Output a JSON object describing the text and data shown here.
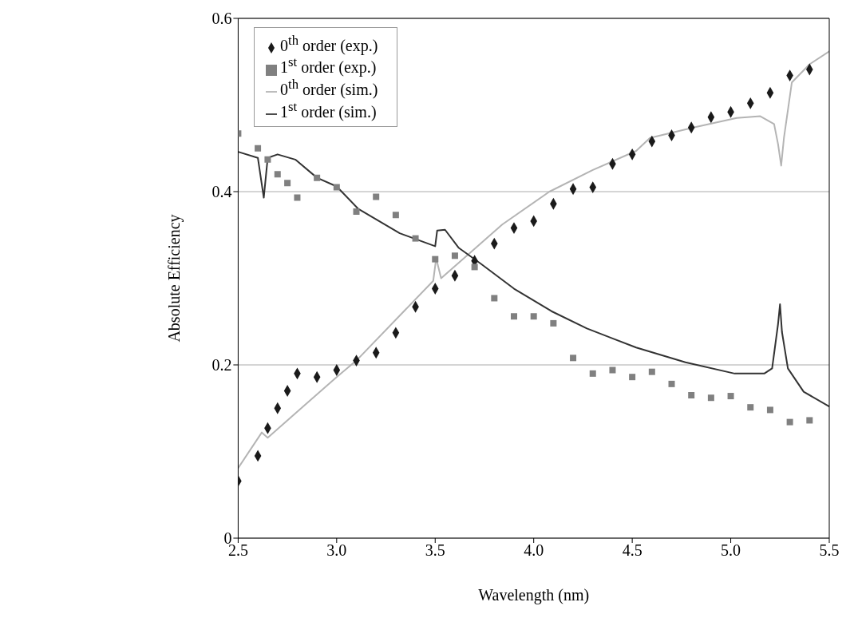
{
  "chart_data": {
    "type": "scatter",
    "xlabel": "Wavelength (nm)",
    "ylabel": "Absolute Efficiency",
    "xlim": [
      2.5,
      5.5
    ],
    "xticks": [
      2.5,
      {
        "value": 3,
        "label": "3.0"
      },
      3.5,
      {
        "value": 4,
        "label": "4.0"
      },
      4.5,
      {
        "value": 5,
        "label": "5.0"
      },
      5.5
    ],
    "ylim": [
      0,
      0.6
    ],
    "yticks": [
      0,
      0.2,
      0.4,
      0.6
    ],
    "grid": "y",
    "legend": "top",
    "series": [
      {
        "name": "0$^{th}$ order (exp.)",
        "marker": "diamond",
        "color": "#1a1a1a",
        "x": [
          2.5,
          2.6,
          2.65,
          2.7,
          2.75,
          2.8,
          2.9,
          3.0,
          3.1,
          3.2,
          3.3,
          3.4,
          3.5,
          3.6,
          3.7,
          3.8,
          3.9,
          4.0,
          4.1,
          4.2,
          4.3,
          4.4,
          4.5,
          4.6,
          4.7,
          4.8,
          4.9,
          5.0,
          5.1,
          5.2,
          5.3,
          5.4
        ],
        "values": [
          0.066,
          0.095,
          0.127,
          0.15,
          0.17,
          0.19,
          0.186,
          0.194,
          0.205,
          0.214,
          0.237,
          0.267,
          0.288,
          0.303,
          0.32,
          0.34,
          0.358,
          0.366,
          0.386,
          0.403,
          0.405,
          0.432,
          0.443,
          0.458,
          0.465,
          0.474,
          0.486,
          0.492,
          0.502,
          0.514,
          0.534,
          0.541
        ]
      },
      {
        "name": "1$^{st}$ order (exp.)",
        "marker": "square",
        "color": "#808080",
        "x": [
          2.5,
          2.6,
          2.65,
          2.7,
          2.75,
          2.8,
          2.9,
          3.0,
          3.1,
          3.2,
          3.3,
          3.4,
          3.5,
          3.6,
          3.7,
          3.8,
          3.9,
          4.0,
          4.1,
          4.2,
          4.3,
          4.4,
          4.5,
          4.6,
          4.7,
          4.8,
          4.9,
          5.0,
          5.1,
          5.2,
          5.3,
          5.4
        ],
        "values": [
          0.467,
          0.45,
          0.437,
          0.42,
          0.41,
          0.393,
          0.416,
          0.405,
          0.377,
          0.394,
          0.373,
          0.346,
          0.322,
          0.326,
          0.313,
          0.277,
          0.256,
          0.256,
          0.248,
          0.208,
          0.19,
          0.194,
          0.186,
          0.192,
          0.178,
          0.165,
          0.162,
          0.164,
          0.151,
          0.148,
          0.134,
          0.136
        ]
      },
      {
        "name": "0$^{th}$ order (sim.)",
        "type": "line",
        "marker": "none",
        "color": "#b4b4b4",
        "x": [
          2.5,
          2.62,
          2.65,
          3.0,
          3.1,
          3.49,
          3.505,
          3.53,
          3.68,
          3.84,
          4.08,
          4.3,
          4.52,
          4.59,
          4.81,
          5.03,
          5.15,
          5.22,
          5.24,
          5.256,
          5.27,
          5.31,
          5.4,
          5.5
        ],
        "values": [
          0.081,
          0.122,
          0.116,
          0.186,
          0.205,
          0.297,
          0.323,
          0.3,
          0.33,
          0.362,
          0.4,
          0.425,
          0.447,
          0.462,
          0.474,
          0.485,
          0.487,
          0.478,
          0.455,
          0.43,
          0.462,
          0.526,
          0.547,
          0.562
        ]
      },
      {
        "name": "1$^{st}$ order (sim.)",
        "type": "line",
        "marker": "none",
        "color": "#333333",
        "x": [
          2.5,
          2.6,
          2.63,
          2.65,
          2.7,
          2.79,
          2.9,
          3.0,
          3.11,
          3.32,
          3.5,
          3.51,
          3.55,
          3.62,
          3.73,
          3.9,
          4.09,
          4.27,
          4.52,
          4.77,
          5.02,
          5.17,
          5.21,
          5.24,
          5.25,
          5.26,
          5.29,
          5.37,
          5.5
        ],
        "values": [
          0.446,
          0.439,
          0.393,
          0.439,
          0.443,
          0.437,
          0.416,
          0.406,
          0.38,
          0.352,
          0.337,
          0.355,
          0.356,
          0.335,
          0.317,
          0.288,
          0.262,
          0.242,
          0.22,
          0.203,
          0.19,
          0.19,
          0.196,
          0.247,
          0.27,
          0.238,
          0.196,
          0.169,
          0.152
        ]
      }
    ]
  }
}
